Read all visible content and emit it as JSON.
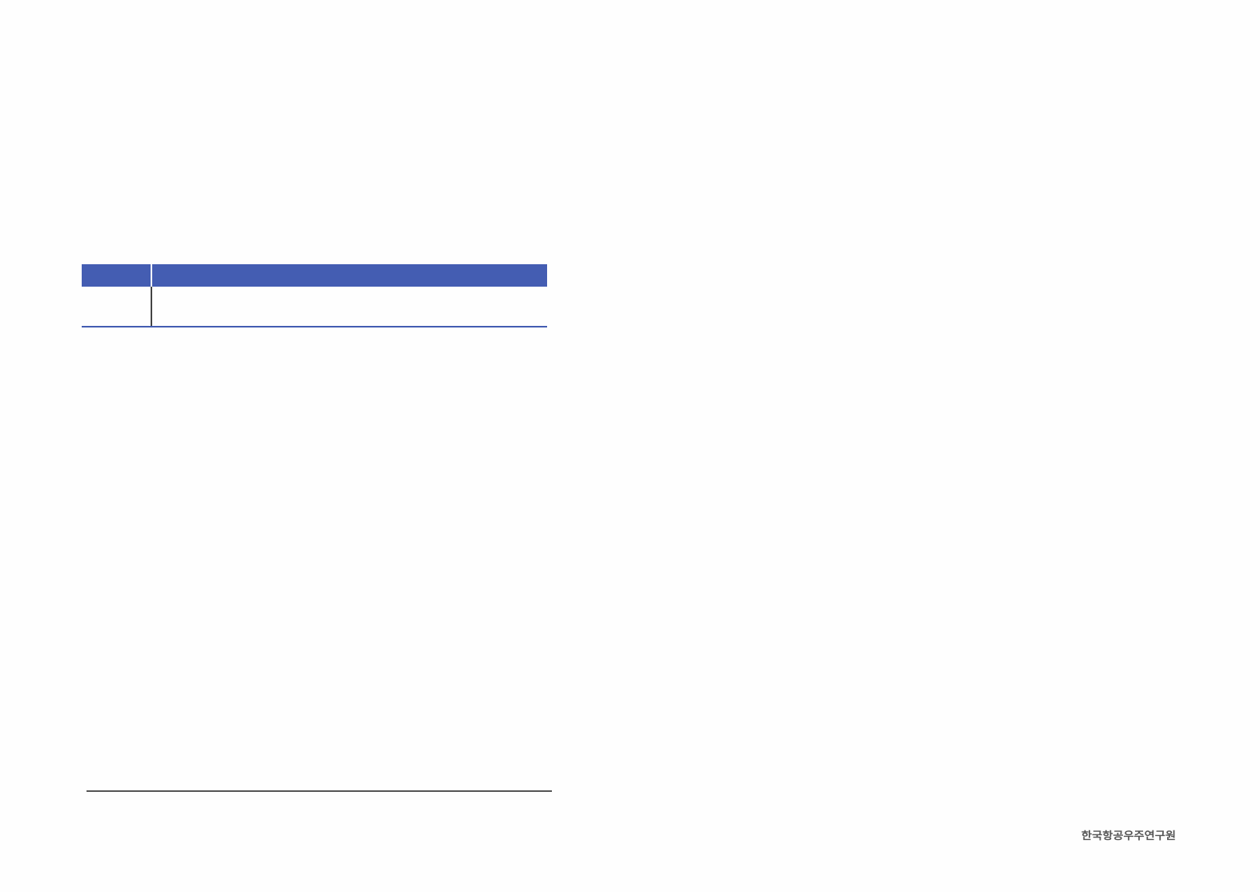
{
  "colors": {
    "accent": "#445db2",
    "rule": "#555555"
  },
  "table": {
    "header": [
      "",
      ""
    ],
    "rows": [
      [
        "",
        ""
      ]
    ]
  },
  "footer": {
    "logo_text": "한국항공우주연구원"
  }
}
